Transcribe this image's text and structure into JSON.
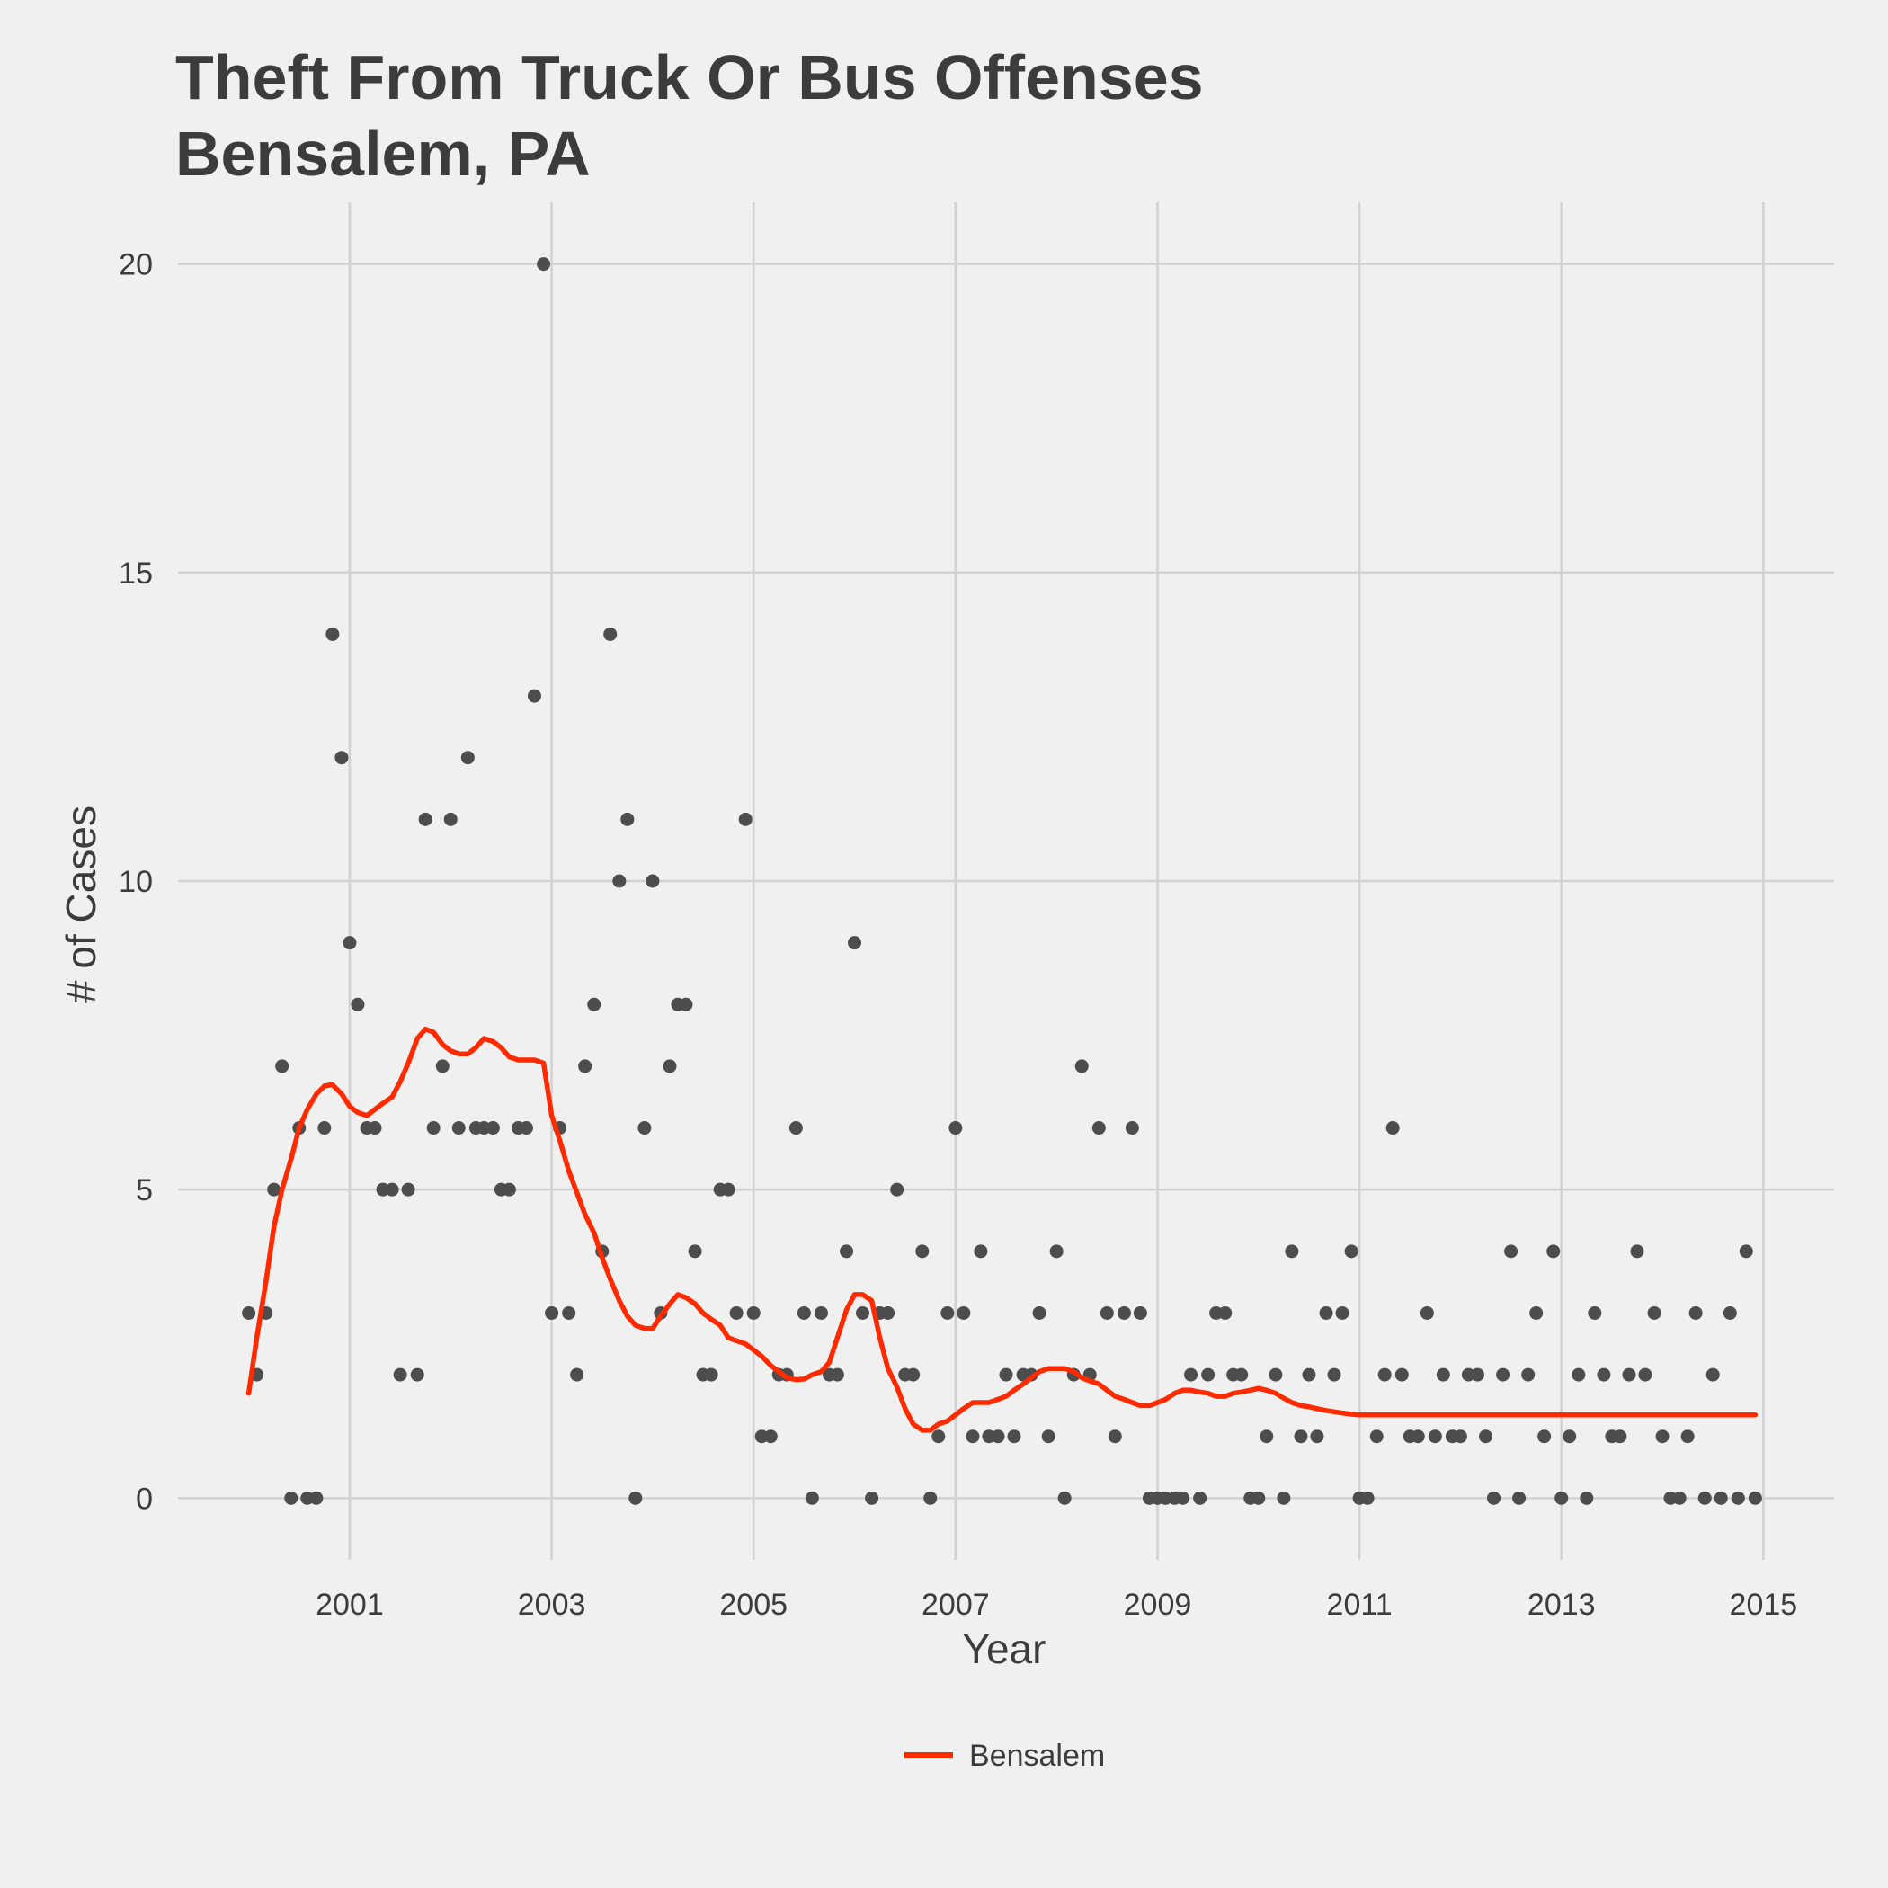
{
  "chart_data": {
    "type": "scatter",
    "title": "Theft From Truck Or Bus Offenses",
    "subtitle": "Bensalem, PA",
    "xlabel": "Year",
    "ylabel": "# of Cases",
    "xlim": [
      1999.3,
      2015.7
    ],
    "ylim": [
      -1,
      21
    ],
    "x_ticks": [
      2001,
      2003,
      2005,
      2007,
      2009,
      2011,
      2013,
      2015
    ],
    "y_ticks": [
      0,
      5,
      10,
      15,
      20
    ],
    "grid": true,
    "legend": {
      "position": "bottom",
      "entries": [
        "Bensalem"
      ]
    },
    "colors": {
      "background": "#f0f0f0",
      "grid": "#d2d2d2",
      "points": "#4d4d4d",
      "trend": "#ff2a00",
      "text": "#3c3c3c"
    },
    "points": [
      [
        2000.0,
        3
      ],
      [
        2000.08,
        2
      ],
      [
        2000.17,
        3
      ],
      [
        2000.25,
        5
      ],
      [
        2000.33,
        7
      ],
      [
        2000.42,
        0
      ],
      [
        2000.5,
        6
      ],
      [
        2000.58,
        0
      ],
      [
        2000.67,
        0
      ],
      [
        2000.75,
        6
      ],
      [
        2000.83,
        14
      ],
      [
        2000.92,
        12
      ],
      [
        2001.0,
        9
      ],
      [
        2001.08,
        8
      ],
      [
        2001.17,
        6
      ],
      [
        2001.25,
        6
      ],
      [
        2001.33,
        5
      ],
      [
        2001.42,
        5
      ],
      [
        2001.5,
        2
      ],
      [
        2001.58,
        5
      ],
      [
        2001.67,
        2
      ],
      [
        2001.75,
        11
      ],
      [
        2001.83,
        6
      ],
      [
        2001.92,
        7
      ],
      [
        2002.0,
        11
      ],
      [
        2002.08,
        6
      ],
      [
        2002.17,
        12
      ],
      [
        2002.25,
        6
      ],
      [
        2002.33,
        6
      ],
      [
        2002.42,
        6
      ],
      [
        2002.5,
        5
      ],
      [
        2002.58,
        5
      ],
      [
        2002.67,
        6
      ],
      [
        2002.75,
        6
      ],
      [
        2002.83,
        13
      ],
      [
        2002.92,
        20
      ],
      [
        2003.0,
        3
      ],
      [
        2003.08,
        6
      ],
      [
        2003.17,
        3
      ],
      [
        2003.25,
        2
      ],
      [
        2003.33,
        7
      ],
      [
        2003.42,
        8
      ],
      [
        2003.5,
        4
      ],
      [
        2003.58,
        14
      ],
      [
        2003.67,
        10
      ],
      [
        2003.75,
        11
      ],
      [
        2003.83,
        0
      ],
      [
        2003.92,
        6
      ],
      [
        2004.0,
        10
      ],
      [
        2004.08,
        3
      ],
      [
        2004.17,
        7
      ],
      [
        2004.25,
        8
      ],
      [
        2004.33,
        8
      ],
      [
        2004.42,
        4
      ],
      [
        2004.5,
        2
      ],
      [
        2004.58,
        2
      ],
      [
        2004.67,
        5
      ],
      [
        2004.75,
        5
      ],
      [
        2004.83,
        3
      ],
      [
        2004.92,
        11
      ],
      [
        2005.0,
        3
      ],
      [
        2005.08,
        1
      ],
      [
        2005.17,
        1
      ],
      [
        2005.25,
        2
      ],
      [
        2005.33,
        2
      ],
      [
        2005.42,
        6
      ],
      [
        2005.5,
        3
      ],
      [
        2005.58,
        0
      ],
      [
        2005.67,
        3
      ],
      [
        2005.75,
        2
      ],
      [
        2005.83,
        2
      ],
      [
        2005.92,
        4
      ],
      [
        2006.0,
        9
      ],
      [
        2006.08,
        3
      ],
      [
        2006.17,
        0
      ],
      [
        2006.25,
        3
      ],
      [
        2006.33,
        3
      ],
      [
        2006.42,
        5
      ],
      [
        2006.5,
        2
      ],
      [
        2006.58,
        2
      ],
      [
        2006.67,
        4
      ],
      [
        2006.75,
        0
      ],
      [
        2006.83,
        1
      ],
      [
        2006.92,
        3
      ],
      [
        2007.0,
        6
      ],
      [
        2007.08,
        3
      ],
      [
        2007.17,
        1
      ],
      [
        2007.25,
        4
      ],
      [
        2007.33,
        1
      ],
      [
        2007.42,
        1
      ],
      [
        2007.5,
        2
      ],
      [
        2007.58,
        1
      ],
      [
        2007.67,
        2
      ],
      [
        2007.75,
        2
      ],
      [
        2007.83,
        3
      ],
      [
        2007.92,
        1
      ],
      [
        2008.0,
        4
      ],
      [
        2008.08,
        0
      ],
      [
        2008.17,
        2
      ],
      [
        2008.25,
        7
      ],
      [
        2008.33,
        2
      ],
      [
        2008.42,
        6
      ],
      [
        2008.5,
        3
      ],
      [
        2008.58,
        1
      ],
      [
        2008.67,
        3
      ],
      [
        2008.75,
        6
      ],
      [
        2008.83,
        3
      ],
      [
        2008.92,
        0
      ],
      [
        2009.0,
        0
      ],
      [
        2009.08,
        0
      ],
      [
        2009.17,
        0
      ],
      [
        2009.25,
        0
      ],
      [
        2009.33,
        2
      ],
      [
        2009.42,
        0
      ],
      [
        2009.5,
        2
      ],
      [
        2009.58,
        3
      ],
      [
        2009.67,
        3
      ],
      [
        2009.75,
        2
      ],
      [
        2009.83,
        2
      ],
      [
        2009.92,
        0
      ],
      [
        2010.0,
        0
      ],
      [
        2010.08,
        1
      ],
      [
        2010.17,
        2
      ],
      [
        2010.25,
        0
      ],
      [
        2010.33,
        4
      ],
      [
        2010.42,
        1
      ],
      [
        2010.5,
        2
      ],
      [
        2010.58,
        1
      ],
      [
        2010.67,
        3
      ],
      [
        2010.75,
        2
      ],
      [
        2010.83,
        3
      ],
      [
        2010.92,
        4
      ],
      [
        2011.0,
        0
      ],
      [
        2011.08,
        0
      ],
      [
        2011.17,
        1
      ],
      [
        2011.25,
        2
      ],
      [
        2011.33,
        6
      ],
      [
        2011.42,
        2
      ],
      [
        2011.5,
        1
      ],
      [
        2011.58,
        1
      ],
      [
        2011.67,
        3
      ],
      [
        2011.75,
        1
      ],
      [
        2011.83,
        2
      ],
      [
        2011.92,
        1
      ],
      [
        2012.0,
        1
      ],
      [
        2012.08,
        2
      ],
      [
        2012.17,
        2
      ],
      [
        2012.25,
        1
      ],
      [
        2012.33,
        0
      ],
      [
        2012.42,
        2
      ],
      [
        2012.5,
        4
      ],
      [
        2012.58,
        0
      ],
      [
        2012.67,
        2
      ],
      [
        2012.75,
        3
      ],
      [
        2012.83,
        1
      ],
      [
        2012.92,
        4
      ],
      [
        2013.0,
        0
      ],
      [
        2013.08,
        1
      ],
      [
        2013.17,
        2
      ],
      [
        2013.25,
        0
      ],
      [
        2013.33,
        3
      ],
      [
        2013.42,
        2
      ],
      [
        2013.5,
        1
      ],
      [
        2013.58,
        1
      ],
      [
        2013.67,
        2
      ],
      [
        2013.75,
        4
      ],
      [
        2013.83,
        2
      ],
      [
        2013.92,
        3
      ],
      [
        2014.0,
        1
      ],
      [
        2014.08,
        0
      ],
      [
        2014.17,
        0
      ],
      [
        2014.25,
        1
      ],
      [
        2014.33,
        3
      ],
      [
        2014.42,
        0
      ],
      [
        2014.5,
        2
      ],
      [
        2014.58,
        0
      ],
      [
        2014.67,
        3
      ],
      [
        2014.75,
        0
      ],
      [
        2014.83,
        4
      ],
      [
        2014.92,
        0
      ]
    ],
    "series": [
      {
        "name": "Bensalem",
        "x": [
          2000.0,
          2000.08,
          2000.17,
          2000.25,
          2000.33,
          2000.42,
          2000.5,
          2000.58,
          2000.67,
          2000.75,
          2000.83,
          2000.92,
          2001.0,
          2001.08,
          2001.17,
          2001.25,
          2001.33,
          2001.42,
          2001.5,
          2001.58,
          2001.67,
          2001.75,
          2001.83,
          2001.92,
          2002.0,
          2002.08,
          2002.17,
          2002.25,
          2002.33,
          2002.42,
          2002.5,
          2002.58,
          2002.67,
          2002.75,
          2002.83,
          2002.92,
          2003.0,
          2003.08,
          2003.17,
          2003.25,
          2003.33,
          2003.42,
          2003.5,
          2003.58,
          2003.67,
          2003.75,
          2003.83,
          2003.92,
          2004.0,
          2004.08,
          2004.17,
          2004.25,
          2004.33,
          2004.42,
          2004.5,
          2004.58,
          2004.67,
          2004.75,
          2004.83,
          2004.92,
          2005.0,
          2005.08,
          2005.17,
          2005.25,
          2005.33,
          2005.42,
          2005.5,
          2005.58,
          2005.67,
          2005.75,
          2005.83,
          2005.92,
          2006.0,
          2006.08,
          2006.17,
          2006.25,
          2006.33,
          2006.42,
          2006.5,
          2006.58,
          2006.67,
          2006.75,
          2006.83,
          2006.92,
          2007.0,
          2007.08,
          2007.17,
          2007.25,
          2007.33,
          2007.42,
          2007.5,
          2007.58,
          2007.67,
          2007.75,
          2007.83,
          2007.92,
          2008.0,
          2008.08,
          2008.17,
          2008.25,
          2008.33,
          2008.42,
          2008.5,
          2008.58,
          2008.67,
          2008.75,
          2008.83,
          2008.92,
          2009.0,
          2009.08,
          2009.17,
          2009.25,
          2009.33,
          2009.42,
          2009.5,
          2009.58,
          2009.67,
          2009.75,
          2009.83,
          2009.92,
          2010.0,
          2010.08,
          2010.17,
          2010.25,
          2010.33,
          2010.42,
          2010.5,
          2010.58,
          2010.67,
          2010.75,
          2010.83,
          2010.92,
          2011.0,
          2011.08,
          2011.17,
          2011.25,
          2011.33,
          2011.42,
          2011.5,
          2011.58,
          2011.67,
          2011.75,
          2011.83,
          2011.92,
          2012.0,
          2012.08,
          2012.17,
          2012.25,
          2012.33,
          2012.42,
          2012.5,
          2012.58,
          2012.67,
          2012.75,
          2012.83,
          2012.92,
          2013.0,
          2013.08,
          2013.17,
          2013.25,
          2013.33,
          2013.42,
          2013.5,
          2013.58,
          2013.67,
          2013.75,
          2013.83,
          2013.92,
          2014.0,
          2014.08,
          2014.17,
          2014.25,
          2014.33,
          2014.42,
          2014.5,
          2014.58,
          2014.67,
          2014.75,
          2014.83,
          2014.92
        ],
        "y": [
          1.7,
          2.6,
          3.5,
          4.4,
          5.0,
          5.5,
          6.0,
          6.3,
          6.55,
          6.68,
          6.7,
          6.55,
          6.35,
          6.25,
          6.2,
          6.3,
          6.4,
          6.5,
          6.75,
          7.05,
          7.45,
          7.6,
          7.55,
          7.35,
          7.25,
          7.2,
          7.2,
          7.3,
          7.45,
          7.4,
          7.3,
          7.15,
          7.1,
          7.1,
          7.1,
          7.05,
          6.2,
          5.8,
          5.3,
          4.95,
          4.6,
          4.3,
          3.9,
          3.55,
          3.2,
          2.95,
          2.8,
          2.75,
          2.75,
          2.95,
          3.15,
          3.3,
          3.25,
          3.15,
          3.0,
          2.9,
          2.8,
          2.6,
          2.55,
          2.5,
          2.4,
          2.3,
          2.15,
          2.05,
          1.95,
          1.92,
          1.93,
          2.0,
          2.05,
          2.2,
          2.6,
          3.05,
          3.3,
          3.3,
          3.2,
          2.6,
          2.1,
          1.8,
          1.45,
          1.2,
          1.1,
          1.1,
          1.2,
          1.25,
          1.35,
          1.45,
          1.55,
          1.55,
          1.55,
          1.6,
          1.65,
          1.75,
          1.85,
          1.95,
          2.05,
          2.1,
          2.1,
          2.1,
          2.05,
          1.95,
          1.9,
          1.85,
          1.75,
          1.65,
          1.6,
          1.55,
          1.5,
          1.5,
          1.55,
          1.6,
          1.7,
          1.75,
          1.75,
          1.72,
          1.7,
          1.65,
          1.65,
          1.7,
          1.72,
          1.75,
          1.78,
          1.75,
          1.7,
          1.62,
          1.55,
          1.5,
          1.48,
          1.45,
          1.42,
          1.4,
          1.38,
          1.36,
          1.35,
          1.35,
          1.35,
          1.35,
          1.35,
          1.35,
          1.35,
          1.35,
          1.35,
          1.35,
          1.35,
          1.35,
          1.35,
          1.35,
          1.35,
          1.35,
          1.35,
          1.35,
          1.35,
          1.35,
          1.35,
          1.35,
          1.35,
          1.35,
          1.35,
          1.35,
          1.35,
          1.35,
          1.35,
          1.35,
          1.35,
          1.35,
          1.35,
          1.35,
          1.35,
          1.35,
          1.35,
          1.35,
          1.35,
          1.35,
          1.35,
          1.35,
          1.35,
          1.35,
          1.35,
          1.35,
          1.35,
          1.35
        ]
      }
    ]
  }
}
